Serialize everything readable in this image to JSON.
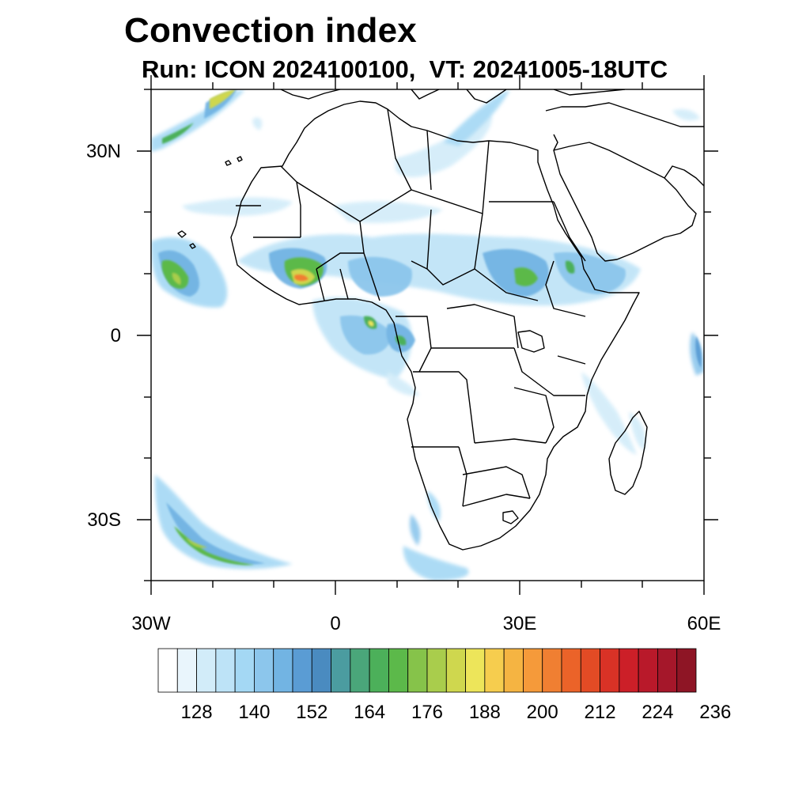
{
  "title": "Convection index",
  "subtitle": "Run: ICON 2024100100,  VT: 20241005-18UTC",
  "axes": {
    "lon_labels": [
      "30W",
      "0",
      "30E",
      "60E"
    ],
    "lat_labels": [
      "30N",
      "0",
      "30S"
    ],
    "lon_range": [
      -30,
      60
    ],
    "lat_range": [
      -40,
      40
    ]
  },
  "colorbar": {
    "tick_labels": [
      "128",
      "140",
      "152",
      "164",
      "176",
      "188",
      "200",
      "212",
      "224",
      "236"
    ],
    "colors": [
      "#ffffff",
      "#e9f5fc",
      "#d2ecf9",
      "#bde3f7",
      "#a4d8f4",
      "#8cc6ec",
      "#72b4e3",
      "#5a9cd4",
      "#4a8bc0",
      "#4b9ca0",
      "#4aa67a",
      "#4cb05a",
      "#5cb94a",
      "#86c34a",
      "#a9cd4c",
      "#cfd74e",
      "#ede55a",
      "#f6cd4e",
      "#f5b442",
      "#f59a3a",
      "#f07f32",
      "#eb6329",
      "#e34b25",
      "#d93226",
      "#cc1f28",
      "#b9192a",
      "#a5172a",
      "#8e1525"
    ]
  },
  "field": {
    "name": "Convection index",
    "regions": [
      {
        "area": "West Africa (Guinea coast)",
        "max_level": "200+"
      },
      {
        "area": "Gulf of Guinea / Cameroon",
        "max_level": "176"
      },
      {
        "area": "Ethiopian highlands",
        "max_level": "176"
      },
      {
        "area": "South Atlantic frontal band",
        "max_level": "176"
      },
      {
        "area": "Tropical Atlantic near Cape Verde",
        "max_level": "176"
      }
    ]
  }
}
